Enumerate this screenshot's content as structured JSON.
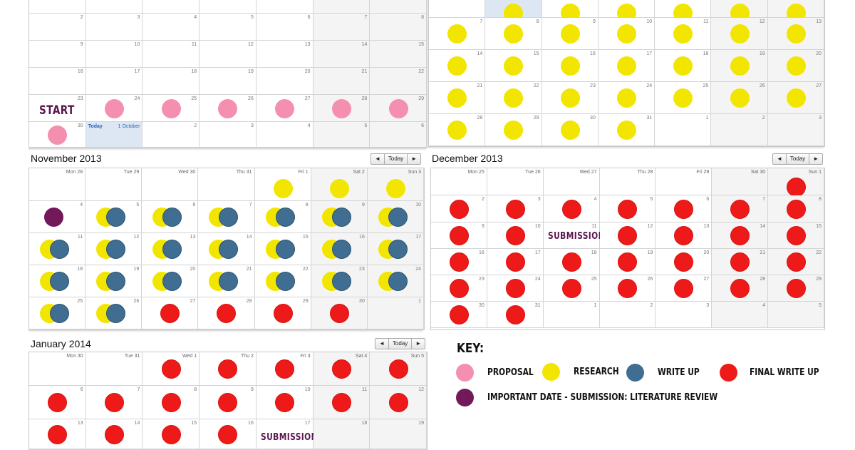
{
  "colors": {
    "proposal": "#f48fb0",
    "research": "#f2e600",
    "write_up": "#3f6e92",
    "final_write_up": "#ee1a1a",
    "important": "#73195a"
  },
  "nav": {
    "prev": "◄",
    "today": "Today",
    "next": "►"
  },
  "october": {
    "today_label": "Today",
    "today_date": "1 October",
    "start_label": "START",
    "rows": [
      [
        "",
        "",
        "",
        "",
        "",
        "",
        ""
      ],
      [
        "2",
        "3",
        "4",
        "5",
        "6",
        "7",
        "8"
      ],
      [
        "9",
        "10",
        "11",
        "12",
        "13",
        "14",
        "15"
      ],
      [
        "16",
        "17",
        "18",
        "19",
        "20",
        "21",
        "22"
      ],
      [
        "23",
        "24",
        "25",
        "26",
        "27",
        "28",
        "29"
      ],
      [
        "30",
        "",
        "2",
        "3",
        "4",
        "5",
        "6"
      ]
    ]
  },
  "september_right": {
    "rows": [
      [
        "",
        "",
        "",
        "",
        "",
        "",
        ""
      ],
      [
        "7",
        "8",
        "9",
        "10",
        "11",
        "12",
        "13"
      ],
      [
        "14",
        "15",
        "16",
        "17",
        "18",
        "19",
        "20"
      ],
      [
        "21",
        "22",
        "23",
        "24",
        "25",
        "26",
        "27"
      ],
      [
        "28",
        "29",
        "30",
        "31",
        "1",
        "2",
        "3"
      ]
    ]
  },
  "november": {
    "title": "November 2013",
    "headers": [
      "Mon 28",
      "Tue 29",
      "Wed 30",
      "Thu 31",
      "Fri 1",
      "Sat 2",
      "Sun 3"
    ],
    "rows": [
      [
        "4",
        "5",
        "6",
        "7",
        "8",
        "9",
        "10"
      ],
      [
        "11",
        "12",
        "13",
        "14",
        "15",
        "16",
        "17"
      ],
      [
        "18",
        "19",
        "20",
        "21",
        "22",
        "23",
        "24"
      ],
      [
        "25",
        "26",
        "27",
        "28",
        "29",
        "30",
        "1"
      ]
    ]
  },
  "december": {
    "title": "December 2013",
    "submission_label": "SUBMISSION",
    "headers": [
      "Mon 25",
      "Tue 26",
      "Wed 27",
      "Thu 28",
      "Fri 29",
      "Sat 30",
      "Sun 1"
    ],
    "rows": [
      [
        "2",
        "3",
        "4",
        "5",
        "6",
        "7",
        "8"
      ],
      [
        "9",
        "10",
        "11",
        "12",
        "13",
        "14",
        "15"
      ],
      [
        "16",
        "17",
        "18",
        "19",
        "20",
        "21",
        "22"
      ],
      [
        "23",
        "24",
        "25",
        "26",
        "27",
        "28",
        "29"
      ],
      [
        "30",
        "31",
        "1",
        "2",
        "3",
        "4",
        "5"
      ]
    ]
  },
  "january": {
    "title": "January 2014",
    "submission_label": "SUBMISSION",
    "headers": [
      "Mon 30",
      "Tue 31",
      "Wed 1",
      "Thu 2",
      "Fri 3",
      "Sat 4",
      "Sun 5"
    ],
    "rows": [
      [
        "6",
        "7",
        "8",
        "9",
        "10",
        "11",
        "12"
      ],
      [
        "13",
        "14",
        "15",
        "16",
        "17",
        "18",
        "19"
      ]
    ]
  },
  "key": {
    "title": "KEY:",
    "items": [
      {
        "label": "PROPOSAL",
        "color": "#f48fb0"
      },
      {
        "label": "RESEARCH",
        "color": "#f2e600"
      },
      {
        "label": "WRITE UP",
        "color": "#3f6e92"
      },
      {
        "label": "FINAL WRITE UP",
        "color": "#ee1a1a"
      },
      {
        "label": "IMPORTANT DATE - SUBMISSION: LITERATURE REVIEW",
        "color": "#73195a"
      }
    ]
  }
}
